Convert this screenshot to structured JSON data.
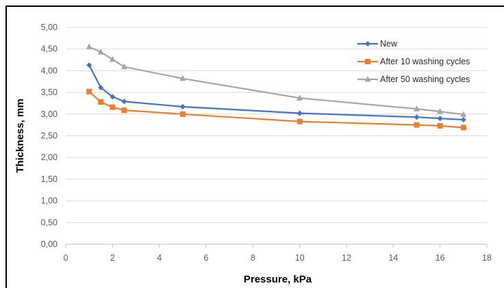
{
  "chart_data": {
    "type": "line",
    "xlabel": "Pressure, kPa",
    "ylabel": "Thickness, mm",
    "xlim": [
      0,
      18
    ],
    "ylim": [
      0,
      5
    ],
    "x_ticks": [
      "0",
      "2",
      "4",
      "6",
      "8",
      "10",
      "12",
      "14",
      "16",
      "18"
    ],
    "y_ticks": [
      "0,00",
      "0,50",
      "1,00",
      "1,50",
      "2,00",
      "2,50",
      "3,00",
      "3,50",
      "4,00",
      "4,50",
      "5,00"
    ],
    "grid": "horizontal",
    "legend_position": "top-right",
    "series": [
      {
        "name": "New",
        "color": "#4472C4",
        "marker": "diamond",
        "x": [
          1,
          1.5,
          2,
          2.5,
          5,
          10,
          15,
          16,
          17
        ],
        "y": [
          4.13,
          3.61,
          3.4,
          3.29,
          3.17,
          3.02,
          2.93,
          2.9,
          2.87
        ]
      },
      {
        "name": "After 10 washing cycles",
        "color": "#ED7D31",
        "marker": "square",
        "x": [
          1,
          1.5,
          2,
          2.5,
          5,
          10,
          15,
          16,
          17
        ],
        "y": [
          3.52,
          3.28,
          3.16,
          3.09,
          3.0,
          2.83,
          2.75,
          2.73,
          2.69
        ]
      },
      {
        "name": "After 50 washing cycles",
        "color": "#A5A5A5",
        "marker": "triangle",
        "x": [
          1,
          1.5,
          2,
          2.5,
          5,
          10,
          15,
          16,
          17
        ],
        "y": [
          4.55,
          4.43,
          4.26,
          4.09,
          3.82,
          3.37,
          3.12,
          3.06,
          2.99
        ]
      }
    ]
  }
}
